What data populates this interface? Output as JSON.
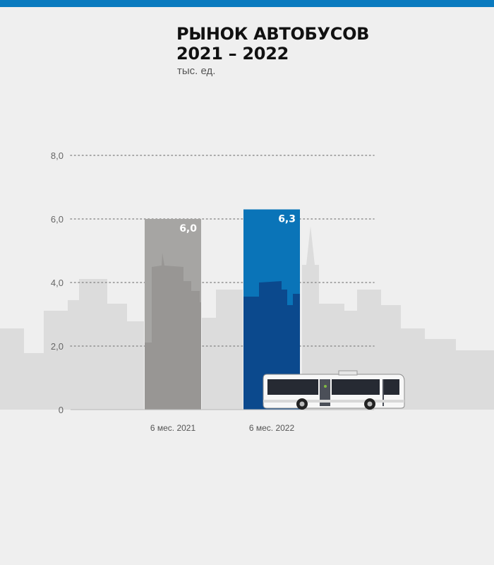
{
  "header": {
    "title_line1": "РЫНОК АВТОБУСОВ",
    "title_line2": "2021 – 2022",
    "units": "тыс. ед."
  },
  "colors": {
    "accent": "#0a7abf",
    "bar_2021": "#a6a5a3",
    "bar_2022": "#0a74b8",
    "background": "#efefef",
    "skyline": "#dcdcdc"
  },
  "chart_data": {
    "type": "bar",
    "title": "РЫНОК АВТОБУСОВ 2021 – 2022",
    "ylabel": "тыс. ед.",
    "xlabel": "",
    "categories": [
      "6 мес. 2021",
      "6 мес. 2022"
    ],
    "values": [
      6.0,
      6.3
    ],
    "value_labels": [
      "6,0",
      "6,3"
    ],
    "ylim": [
      0,
      8
    ],
    "yticks": [
      0,
      2,
      4,
      6,
      8
    ],
    "ytick_labels": [
      "0",
      "2,0",
      "4,0",
      "6,0",
      "8,0"
    ],
    "grid": true,
    "legend": "none"
  },
  "decoration": {
    "bus_icon": "bus-illustration",
    "skyline": "city-skyline-background"
  }
}
